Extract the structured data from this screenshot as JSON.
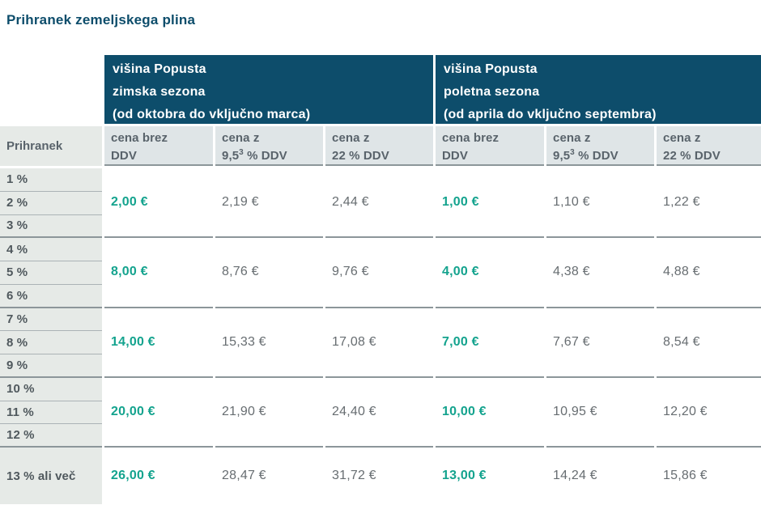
{
  "title": "Prihranek zemeljskega plina",
  "colors": {
    "header_bg": "#0d4d6b",
    "title_text": "#0d4d6b",
    "accent_teal": "#14a38e",
    "subheader_bg": "#dfe5e7",
    "row_label_bg": "#e6eae7",
    "value_text": "#676d71"
  },
  "table": {
    "season_headers": [
      {
        "line1": "višina Popusta",
        "line2": "zimska sezona",
        "line3": "(od oktobra do vključno marca)"
      },
      {
        "line1": "višina Popusta",
        "line2": "poletna sezona",
        "line3": "(od aprila do vključno septembra)"
      }
    ],
    "row_header": "Prihranek",
    "col_headers": [
      {
        "line1": "cena brez",
        "l2a": "DDV",
        "sup": "",
        "l2b": ""
      },
      {
        "line1": "cena z",
        "l2a": "9,5",
        "sup": "3",
        "l2b": " % DDV"
      },
      {
        "line1": "cena z",
        "l2a": "22",
        "sup": "",
        "l2b": " % DDV"
      },
      {
        "line1": "cena brez",
        "l2a": "DDV",
        "sup": "",
        "l2b": ""
      },
      {
        "line1": "cena z",
        "l2a": "9,5",
        "sup": "3",
        "l2b": " % DDV"
      },
      {
        "line1": "cena z",
        "l2a": "22",
        "sup": "",
        "l2b": " % DDV"
      }
    ],
    "groups": [
      {
        "rows": [
          "1 %",
          "2 %",
          "3 %"
        ],
        "values": [
          "2,00 €",
          "2,19 €",
          "2,44 €",
          "1,00 €",
          "1,10 €",
          "1,22 €"
        ]
      },
      {
        "rows": [
          "4 %",
          "5 %",
          "6 %"
        ],
        "values": [
          "8,00 €",
          "8,76 €",
          "9,76 €",
          "4,00 €",
          "4,38 €",
          "4,88 €"
        ]
      },
      {
        "rows": [
          "7 %",
          "8 %",
          "9 %"
        ],
        "values": [
          "14,00 €",
          "15,33 €",
          "17,08 €",
          "7,00 €",
          "7,67 €",
          "8,54 €"
        ]
      },
      {
        "rows": [
          "10 %",
          "11 %",
          "12 %"
        ],
        "values": [
          "20,00 €",
          "21,90 €",
          "24,40 €",
          "10,00 €",
          "10,95 €",
          "12,20 €"
        ]
      }
    ],
    "last_row": {
      "label": "13 % ali več",
      "values": [
        "26,00 €",
        "28,47 €",
        "31,72 €",
        "13,00 €",
        "14,24 €",
        "15,86 €"
      ]
    }
  }
}
